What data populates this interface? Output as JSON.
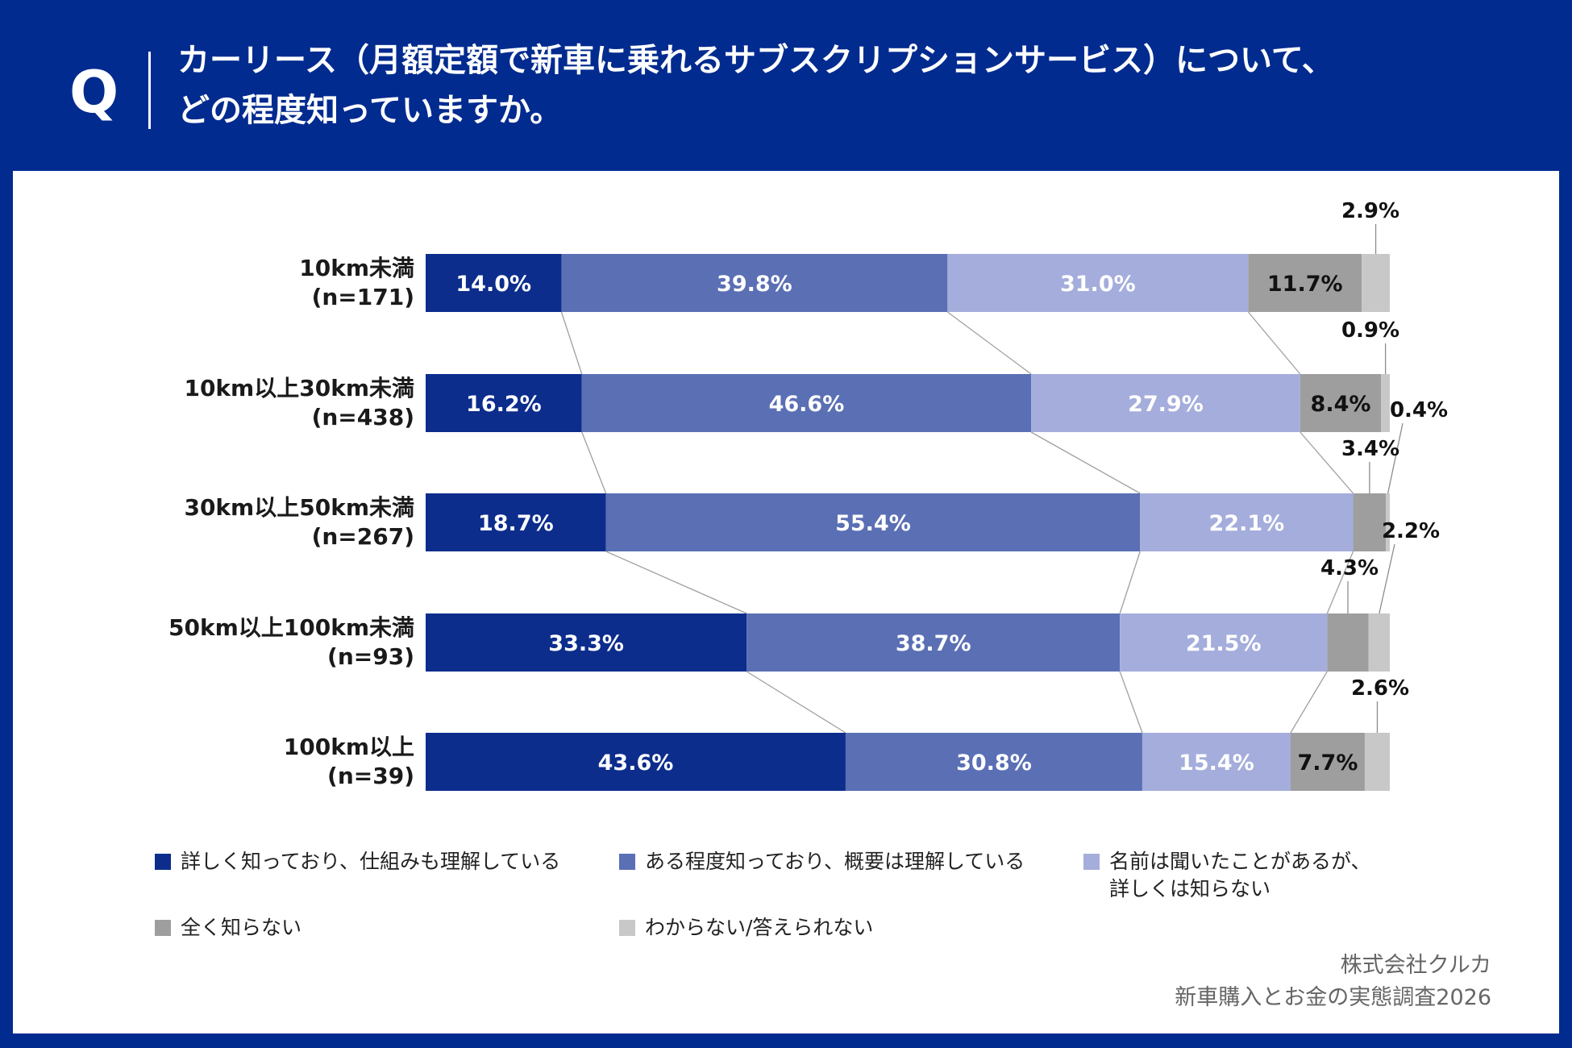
{
  "header": {
    "q_mark": "Q",
    "question_line1": "カーリース（月額定額で新車に乗れるサブスクリプションサービス）について、",
    "question_line2": "どの程度知っていますか。"
  },
  "colors": {
    "header_bg": "#012b8f",
    "series": [
      "#0c2d8c",
      "#5a6fb4",
      "#a4addb",
      "#9e9e9e",
      "#c8c8c8"
    ]
  },
  "chart_data": {
    "type": "bar",
    "orientation": "horizontal",
    "stacked": "100%",
    "categories": [
      {
        "label": "10km未満",
        "n": "(n=171)"
      },
      {
        "label": "10km以上30km未満",
        "n": "(n=438)"
      },
      {
        "label": "30km以上50km未満",
        "n": "(n=267)"
      },
      {
        "label": "50km以上100km未満",
        "n": "(n=93)"
      },
      {
        "label": "100km以上",
        "n": "(n=39)"
      }
    ],
    "series": [
      {
        "name": "詳しく知っており、仕組みも理解している",
        "values": [
          14.0,
          16.2,
          18.7,
          33.3,
          43.6
        ]
      },
      {
        "name": "ある程度知っており、概要は理解している",
        "values": [
          39.8,
          46.6,
          55.4,
          38.7,
          30.8
        ]
      },
      {
        "name": "名前は聞いたことがあるが、詳しくは知らない",
        "values": [
          31.0,
          27.9,
          22.1,
          21.5,
          15.4
        ]
      },
      {
        "name": "全く知らない",
        "values": [
          11.7,
          8.4,
          3.4,
          4.3,
          7.7
        ]
      },
      {
        "name": "わからない/答えられない",
        "values": [
          2.9,
          0.9,
          0.4,
          2.2,
          2.6
        ]
      }
    ],
    "unit": "%",
    "xlim": [
      0,
      100
    ],
    "legend_position": "bottom"
  },
  "legend": {
    "items": [
      {
        "lines": [
          "詳しく知っており、仕組みも理解している"
        ]
      },
      {
        "lines": [
          "ある程度知っており、概要は理解している"
        ]
      },
      {
        "lines": [
          "名前は聞いたことがあるが、",
          "詳しくは知らない"
        ]
      },
      {
        "lines": [
          "全く知らない"
        ]
      },
      {
        "lines": [
          "わからない/答えられない"
        ]
      }
    ]
  },
  "source": {
    "company": "株式会社クルカ",
    "survey": "新車購入とお金の実態調査2026"
  }
}
